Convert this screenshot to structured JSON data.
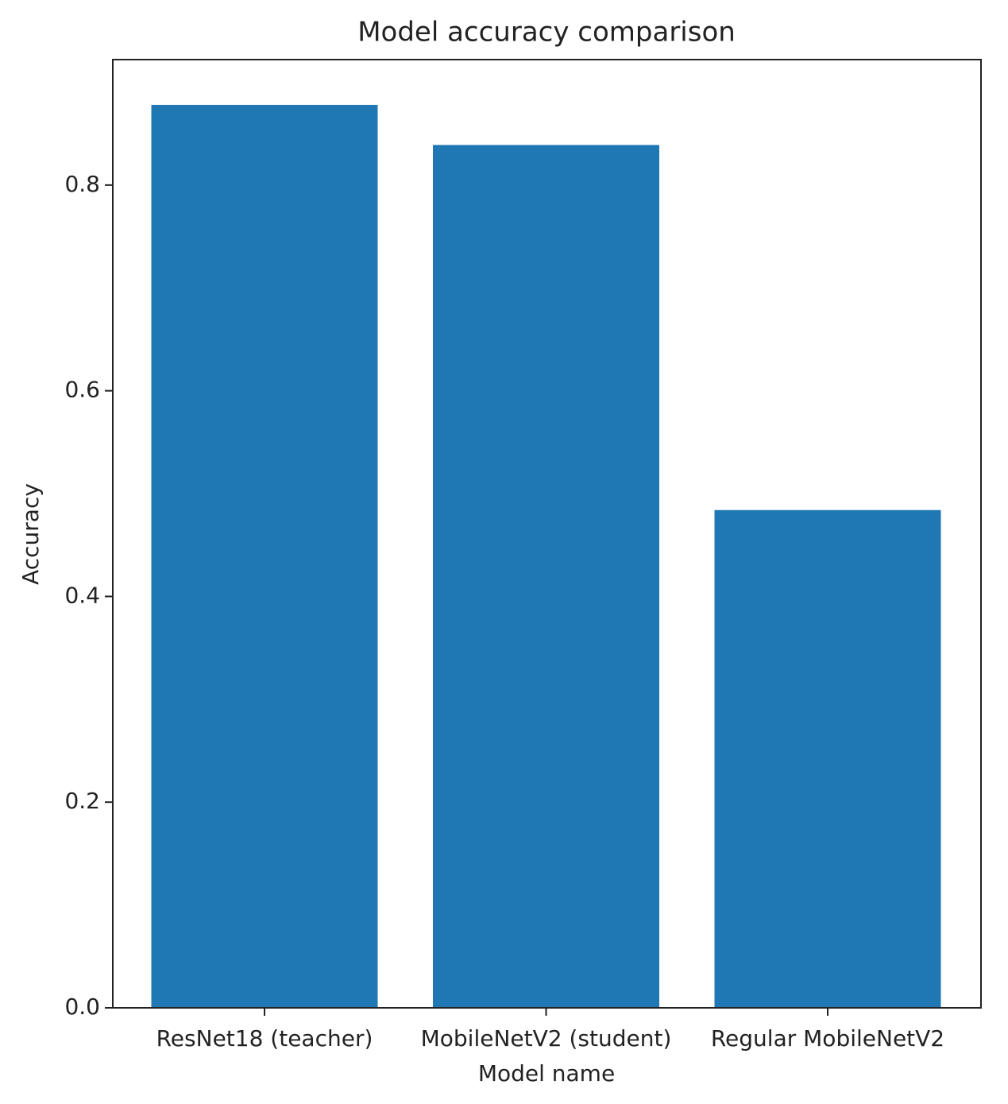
{
  "chart_data": {
    "type": "bar",
    "title": "Model accuracy comparison",
    "x_label": "Model name",
    "y_label": "Accuracy",
    "categories": [
      "ResNet18 (teacher)",
      "MobileNetV2 (student)",
      "Regular MobileNetV2"
    ],
    "values": [
      0.878,
      0.839,
      0.484
    ],
    "color": "#1f77b4",
    "ylim": [
      0,
      0.922
    ],
    "yticks": [
      {
        "value": 0,
        "label": "0.0"
      },
      0.2,
      0.4,
      0.6,
      0.8
    ]
  }
}
